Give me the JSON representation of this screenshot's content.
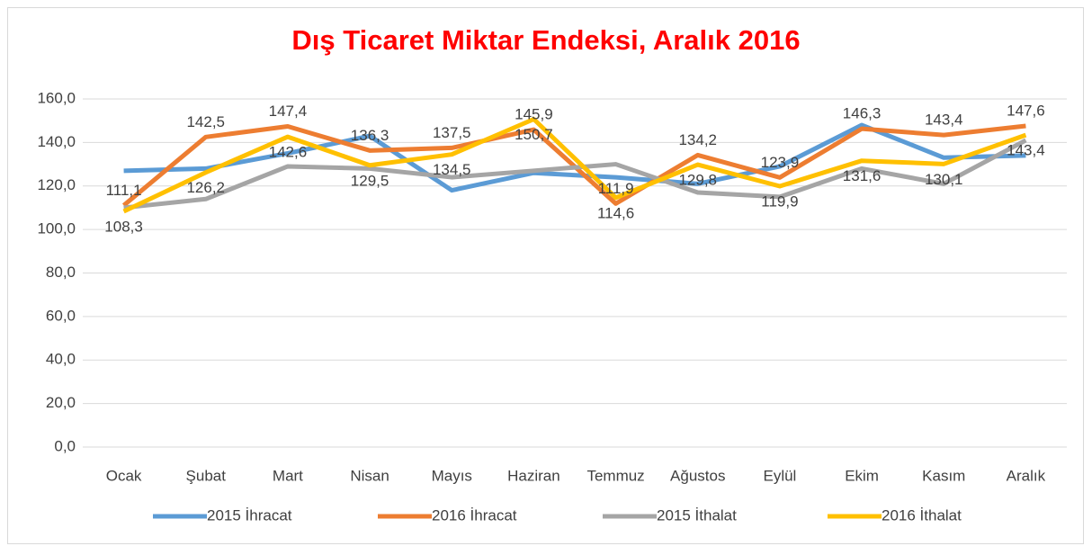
{
  "chart_data": {
    "type": "line",
    "title": "Dış Ticaret Miktar Endeksi, Aralık 2016",
    "categories": [
      "Ocak",
      "Şubat",
      "Mart",
      "Nisan",
      "Mayıs",
      "Haziran",
      "Temmuz",
      "Ağustos",
      "Eylül",
      "Ekim",
      "Kasım",
      "Aralık"
    ],
    "series": [
      {
        "name": "2015 İhracat",
        "color": "#5b9bd5",
        "values": [
          127,
          128,
          135,
          143,
          118,
          126,
          124,
          121,
          129,
          148,
          133,
          134
        ]
      },
      {
        "name": "2016 İhracat",
        "color": "#ed7d31",
        "values": [
          111.1,
          142.5,
          147.4,
          136.3,
          137.5,
          145.9,
          111.9,
          134.2,
          123.9,
          146.3,
          143.4,
          147.6
        ],
        "value_labels": [
          "111,1",
          "142,5",
          "147,4",
          "136,3",
          "137,5",
          "145,9",
          "111,9",
          "134,2",
          "123,9",
          "146,3",
          "143,4",
          "147,6"
        ]
      },
      {
        "name": "2015 İthalat",
        "color": "#a5a5a5",
        "values": [
          110,
          114,
          129,
          128,
          124,
          127,
          130,
          117,
          115,
          128,
          121,
          141
        ]
      },
      {
        "name": "2016 İthalat",
        "color": "#ffc000",
        "values": [
          108.3,
          126.2,
          142.6,
          129.5,
          134.5,
          150.7,
          114.6,
          129.8,
          119.9,
          131.6,
          130.1,
          143.4
        ],
        "value_labels": [
          "108,3",
          "126,2",
          "142,6",
          "129,5",
          "134,5",
          "150,7",
          "114,6",
          "129,8",
          "119,9",
          "131,6",
          "130,1",
          "143,4"
        ]
      }
    ],
    "ylim": [
      0,
      160
    ],
    "yticks": [
      {
        "value": 0,
        "label": "0,0"
      },
      {
        "value": 20,
        "label": "20,0"
      },
      {
        "value": 40,
        "label": "40,0"
      },
      {
        "value": 60,
        "label": "60,0"
      },
      {
        "value": 80,
        "label": "80,0"
      },
      {
        "value": 100,
        "label": "100,0"
      },
      {
        "value": 120,
        "label": "120,0"
      },
      {
        "value": 140,
        "label": "140,0"
      },
      {
        "value": 160,
        "label": "160,0"
      }
    ],
    "grid": true,
    "legend": "bottom"
  }
}
